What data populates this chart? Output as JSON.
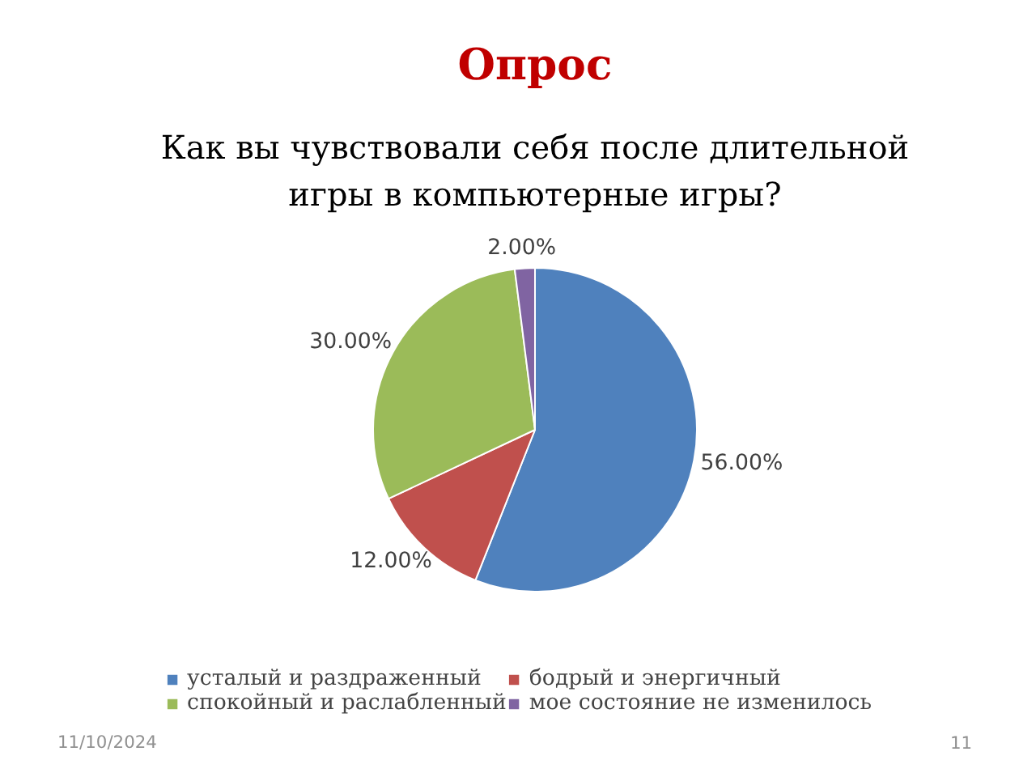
{
  "chart_data": {
    "type": "pie",
    "title": "Опрос",
    "subtitle": "Как вы чувствовали себя после длительной игры в компьютерные игры?",
    "categories": [
      "усталый и раздраженный",
      "бодрый и энергичный",
      "спокойный и раслабленный",
      "мое состояние не изменилось"
    ],
    "values": [
      56,
      12,
      30,
      2
    ],
    "colors": [
      "#4f81bd",
      "#c0504d",
      "#9bbb59",
      "#8064a2"
    ],
    "value_labels": [
      "56.00%",
      "12.00%",
      "30.00%",
      "2.00%"
    ],
    "legend": "bottom",
    "annotations": [
      "11/10/2024",
      "11"
    ]
  }
}
